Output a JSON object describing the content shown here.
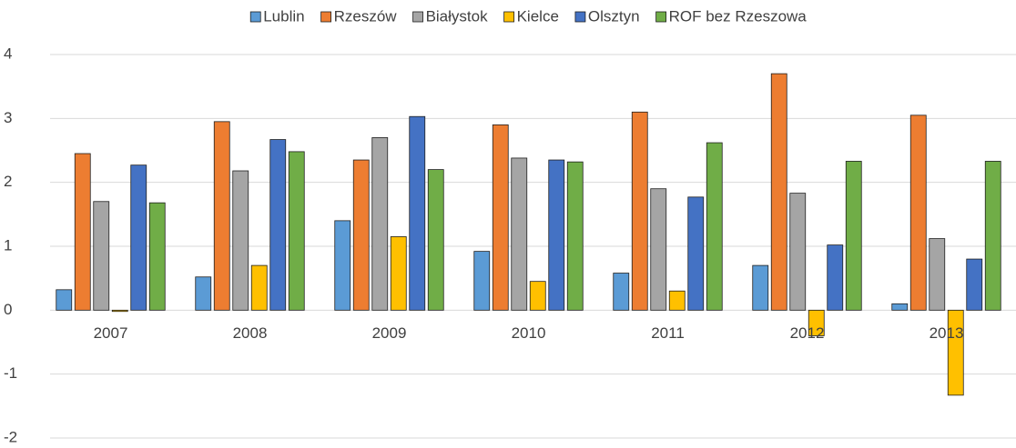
{
  "chart_data": {
    "type": "bar",
    "categories": [
      "2007",
      "2008",
      "2009",
      "2010",
      "2011",
      "2012",
      "2013"
    ],
    "series": [
      {
        "name": "Lublin",
        "color": "#5b9bd5",
        "values": [
          0.32,
          0.52,
          1.4,
          0.92,
          0.58,
          0.7,
          0.1
        ]
      },
      {
        "name": "Rzeszów",
        "color": "#ed7d31",
        "values": [
          2.45,
          2.95,
          2.35,
          2.9,
          3.1,
          3.7,
          3.05
        ]
      },
      {
        "name": "Białystok",
        "color": "#a5a5a5",
        "values": [
          1.7,
          2.18,
          2.7,
          2.38,
          1.9,
          1.83,
          1.12
        ]
      },
      {
        "name": "Kielce",
        "color": "#ffc000",
        "values": [
          -0.02,
          0.7,
          1.15,
          0.45,
          0.3,
          -0.4,
          -1.33
        ]
      },
      {
        "name": "Olsztyn",
        "color": "#4472c4",
        "values": [
          2.27,
          2.67,
          3.03,
          2.35,
          1.77,
          1.02,
          0.8
        ]
      },
      {
        "name": "ROF bez Rzeszowa",
        "color": "#70ad47",
        "values": [
          1.68,
          2.48,
          2.2,
          2.32,
          2.62,
          2.33,
          2.33
        ]
      }
    ],
    "ylim": [
      -2,
      4
    ],
    "yticks": [
      -2,
      -1,
      0,
      1,
      2,
      3,
      4
    ],
    "grid": true,
    "legend": "top"
  }
}
